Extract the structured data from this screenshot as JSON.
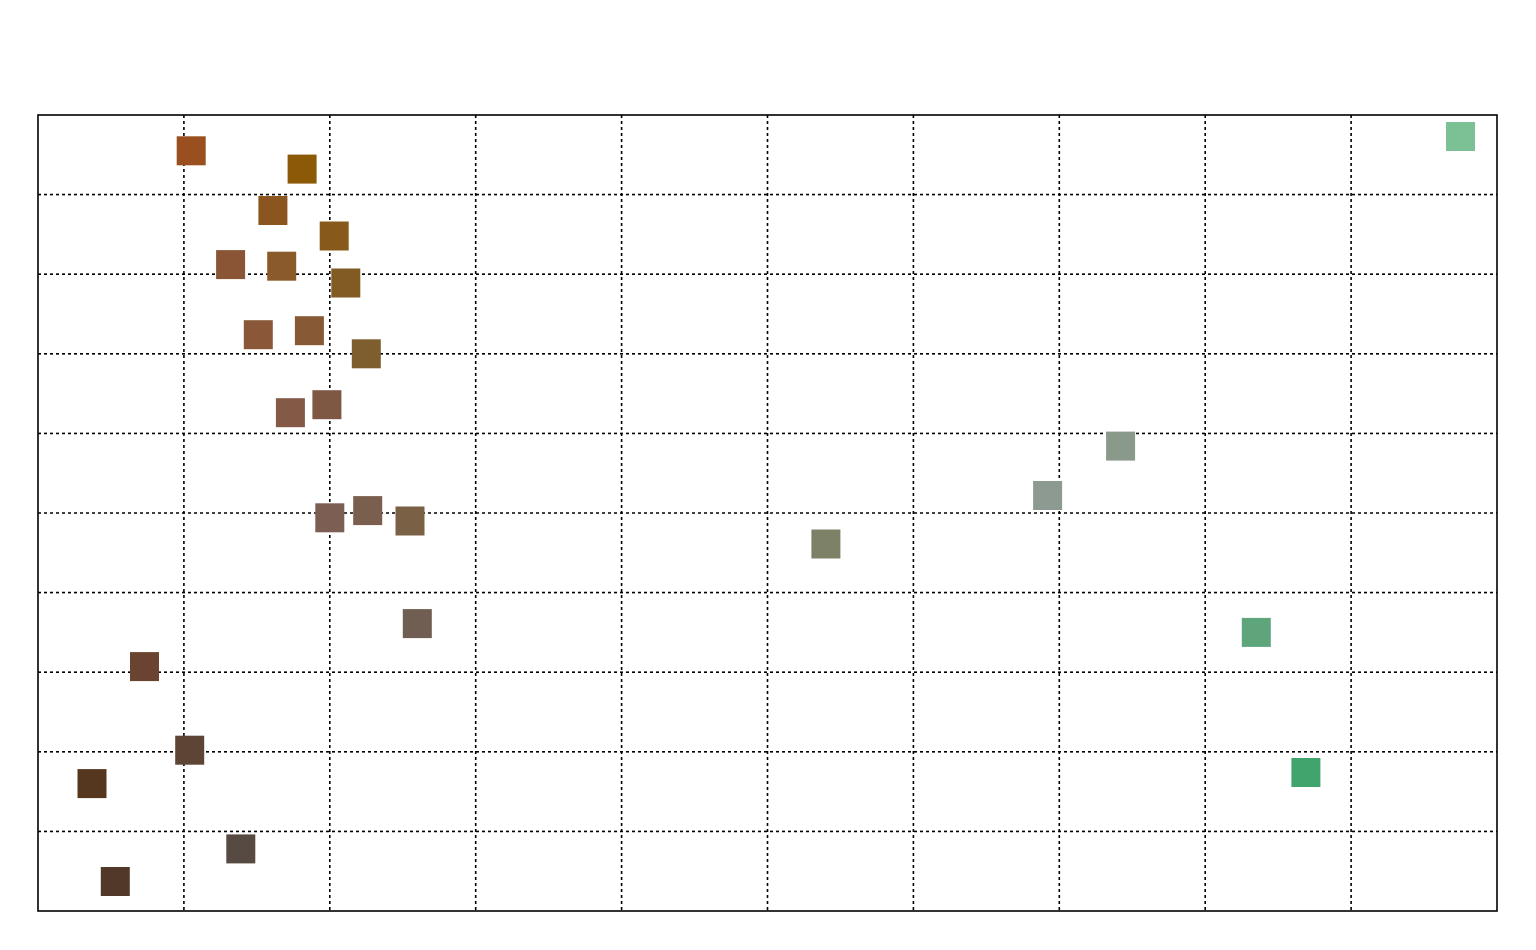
{
  "chart_data": {
    "type": "scatter",
    "title": "",
    "xlabel": "",
    "ylabel": "",
    "xlim": [
      0,
      10
    ],
    "ylim": [
      0,
      10
    ],
    "grid": true,
    "marker": "square",
    "points": [
      {
        "x": 1.05,
        "y": 9.55,
        "color": "#9A4F1E"
      },
      {
        "x": 1.81,
        "y": 9.32,
        "color": "#8C5A06"
      },
      {
        "x": 1.61,
        "y": 8.8,
        "color": "#8B551F"
      },
      {
        "x": 2.03,
        "y": 8.48,
        "color": "#875A1B"
      },
      {
        "x": 1.32,
        "y": 8.12,
        "color": "#8A5534"
      },
      {
        "x": 1.67,
        "y": 8.1,
        "color": "#8B5A2A"
      },
      {
        "x": 2.11,
        "y": 7.89,
        "color": "#825A24"
      },
      {
        "x": 1.51,
        "y": 7.24,
        "color": "#8A5838"
      },
      {
        "x": 1.86,
        "y": 7.29,
        "color": "#875A35"
      },
      {
        "x": 2.25,
        "y": 7.0,
        "color": "#7E5D2E"
      },
      {
        "x": 1.73,
        "y": 6.26,
        "color": "#845A46"
      },
      {
        "x": 1.98,
        "y": 6.36,
        "color": "#7F5844"
      },
      {
        "x": 7.42,
        "y": 5.84,
        "color": "#8A9A8A"
      },
      {
        "x": 6.92,
        "y": 5.22,
        "color": "#8D9A92"
      },
      {
        "x": 2.0,
        "y": 4.94,
        "color": "#7D5E52"
      },
      {
        "x": 2.26,
        "y": 5.03,
        "color": "#7A5E4E"
      },
      {
        "x": 2.55,
        "y": 4.9,
        "color": "#7A6146"
      },
      {
        "x": 5.4,
        "y": 4.61,
        "color": "#7D8168"
      },
      {
        "x": 2.6,
        "y": 3.61,
        "color": "#705E52"
      },
      {
        "x": 8.35,
        "y": 3.5,
        "color": "#5FA57C"
      },
      {
        "x": 0.73,
        "y": 3.07,
        "color": "#6A4430"
      },
      {
        "x": 9.75,
        "y": 9.73,
        "color": "#7CC096"
      },
      {
        "x": 1.04,
        "y": 2.02,
        "color": "#5E4434"
      },
      {
        "x": 0.37,
        "y": 1.6,
        "color": "#55361E"
      },
      {
        "x": 8.69,
        "y": 1.74,
        "color": "#40A46C"
      },
      {
        "x": 1.39,
        "y": 0.78,
        "color": "#574A42"
      },
      {
        "x": 0.53,
        "y": 0.37,
        "color": "#523828"
      }
    ]
  }
}
